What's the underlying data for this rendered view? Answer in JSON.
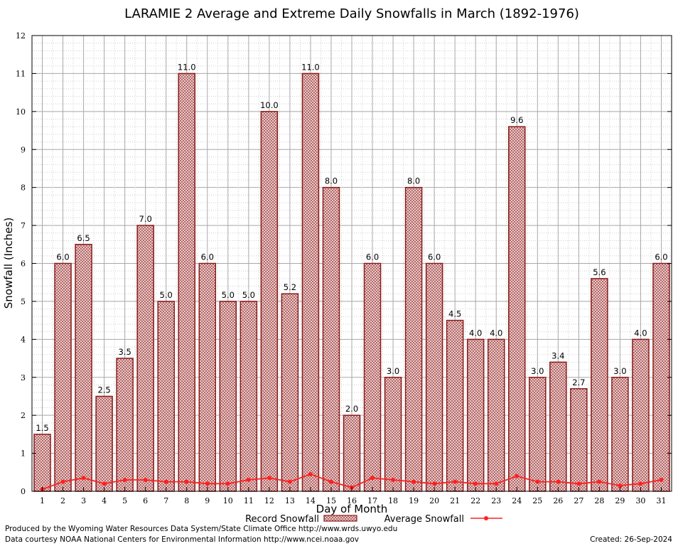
{
  "chart_data": {
    "type": "bar",
    "title": "LARAMIE 2 Average and Extreme Daily Snowfalls in March (1892-1976)",
    "xlabel": "Day of Month",
    "ylabel": "Snowfall (Inches)",
    "ylim": [
      0,
      12
    ],
    "yticks": [
      "0",
      "1",
      "2",
      "3",
      "4",
      "5",
      "6",
      "7",
      "8",
      "9",
      "10",
      "11",
      "12"
    ],
    "grid": true,
    "categories": [
      "1",
      "2",
      "3",
      "4",
      "5",
      "6",
      "7",
      "8",
      "9",
      "10",
      "11",
      "12",
      "13",
      "14",
      "15",
      "16",
      "17",
      "18",
      "19",
      "20",
      "21",
      "22",
      "23",
      "24",
      "25",
      "26",
      "27",
      "28",
      "29",
      "30",
      "31"
    ],
    "series": [
      {
        "name": "Record Snowfall",
        "kind": "bar",
        "color": "#8b1a1a",
        "values": [
          1.5,
          6.0,
          6.5,
          2.5,
          3.5,
          7.0,
          5.0,
          11.0,
          6.0,
          5.0,
          5.0,
          10.0,
          5.2,
          11.0,
          8.0,
          2.0,
          6.0,
          3.0,
          8.0,
          6.0,
          4.5,
          4.0,
          4.0,
          9.6,
          3.0,
          3.4,
          2.7,
          5.6,
          3.0,
          4.0,
          6.0
        ],
        "labels": [
          "1.5",
          "6.0",
          "6.5",
          "2.5",
          "3.5",
          "7.0",
          "5.0",
          "11.0",
          "6.0",
          "5.0",
          "5.0",
          "10.0",
          "5.2",
          "11.0",
          "8.0",
          "2.0",
          "6.0",
          "3.0",
          "8.0",
          "6.0",
          "4.5",
          "4.0",
          "4.0",
          "9.6",
          "3.0",
          "3.4",
          "2.7",
          "5.6",
          "3.0",
          "4.0",
          "6.0"
        ]
      },
      {
        "name": "Average Snowfall",
        "kind": "line",
        "color": "#ff2020",
        "values": [
          0.05,
          0.25,
          0.35,
          0.2,
          0.3,
          0.3,
          0.25,
          0.25,
          0.2,
          0.2,
          0.3,
          0.35,
          0.25,
          0.45,
          0.25,
          0.1,
          0.35,
          0.3,
          0.25,
          0.2,
          0.25,
          0.2,
          0.2,
          0.4,
          0.25,
          0.25,
          0.2,
          0.25,
          0.15,
          0.2,
          0.3
        ]
      }
    ],
    "legend": {
      "position": "bottom-center",
      "items": [
        "Record Snowfall",
        "Average Snowfall"
      ]
    }
  },
  "footer": {
    "line1": "Produced by the Wyoming Water Resources Data System/State Climate Office http://www.wrds.uwyo.edu",
    "line2": "Data courtesy NOAA National Centers for Environmental Information http://www.ncei.noaa.gov",
    "created": "Created:  26-Sep-2024"
  }
}
